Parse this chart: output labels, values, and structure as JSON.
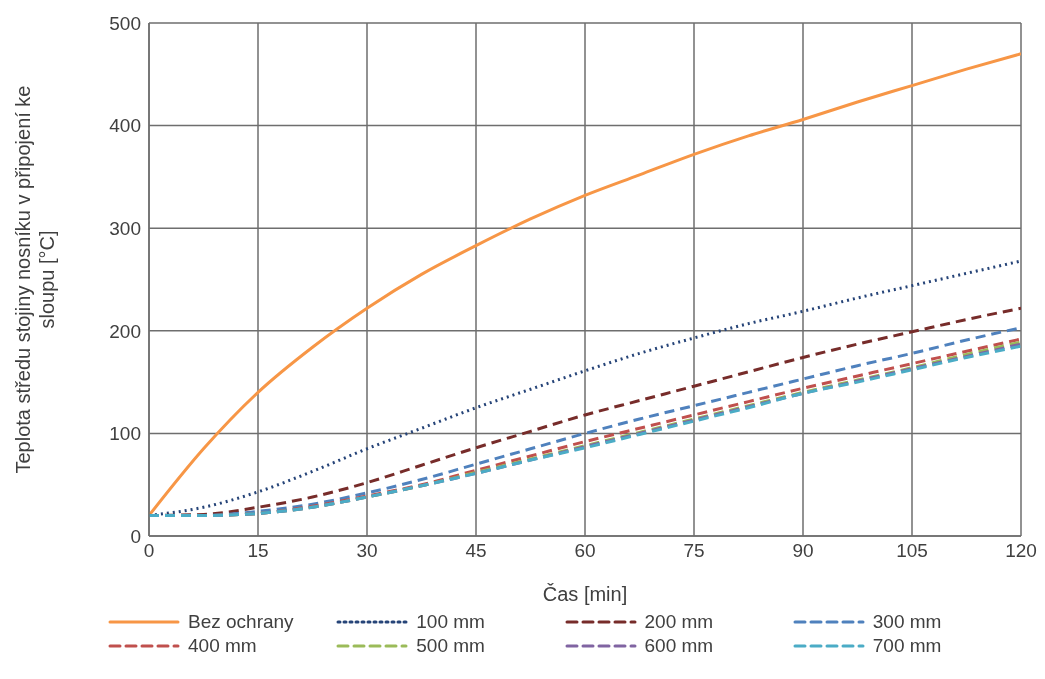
{
  "chart_data": {
    "type": "line",
    "xlabel": "Čas [min]",
    "ylabel": "Teplota středu stojiny nosníku v připojení ke sloupu [°C]",
    "x": [
      0,
      7.5,
      15,
      22.5,
      30,
      37.5,
      45,
      52.5,
      60,
      67.5,
      75,
      82.5,
      90,
      97.5,
      105,
      112.5,
      120
    ],
    "xlim": [
      0,
      120
    ],
    "xticks": [
      0,
      15,
      30,
      45,
      60,
      75,
      90,
      105,
      120
    ],
    "ylim": [
      0,
      500
    ],
    "yticks": [
      0,
      100,
      200,
      300,
      400,
      500
    ],
    "grid": true,
    "legend": "bottom",
    "marker": "none",
    "series": [
      {
        "name": "Bez ochrany",
        "color": "#f79646",
        "line_style": "solid",
        "values": [
          20,
          85,
          140,
          184,
          222,
          255,
          283,
          309,
          332,
          352,
          372,
          390,
          406,
          423,
          439,
          455,
          470
        ]
      },
      {
        "name": "100 mm",
        "color": "#264478",
        "line_style": "dotted",
        "values": [
          20,
          28,
          43,
          63,
          85,
          105,
          125,
          143,
          161,
          178,
          193,
          207,
          219,
          232,
          244,
          256,
          268
        ]
      },
      {
        "name": "200 mm",
        "color": "#772c2a",
        "line_style": "dashed",
        "values": [
          20,
          21,
          28,
          38,
          52,
          69,
          86,
          102,
          118,
          132,
          146,
          160,
          174,
          187,
          199,
          211,
          222
        ]
      },
      {
        "name": "300 mm",
        "color": "#4f81bd",
        "line_style": "dashed",
        "values": [
          20,
          20,
          24,
          31,
          42,
          55,
          70,
          85,
          100,
          114,
          127,
          140,
          153,
          166,
          178,
          191,
          203
        ]
      },
      {
        "name": "400 mm",
        "color": "#c0504d",
        "line_style": "dashed",
        "values": [
          20,
          20,
          22,
          29,
          39,
          50,
          64,
          78,
          92,
          105,
          118,
          131,
          144,
          156,
          168,
          180,
          192
        ]
      },
      {
        "name": "500 mm",
        "color": "#9bbb59",
        "line_style": "dashed",
        "values": [
          20,
          20,
          22,
          28,
          38,
          49,
          62,
          75,
          88,
          101,
          114,
          127,
          140,
          152,
          164,
          177,
          189
        ]
      },
      {
        "name": "600 mm",
        "color": "#8064a2",
        "line_style": "dashed",
        "values": [
          20,
          20,
          22,
          28,
          38,
          49,
          61,
          74,
          87,
          100,
          113,
          126,
          139,
          151,
          163,
          175,
          187
        ]
      },
      {
        "name": "700 mm",
        "color": "#4bacc6",
        "line_style": "dashed",
        "values": [
          20,
          20,
          22,
          28,
          38,
          49,
          61,
          74,
          86,
          99,
          112,
          125,
          139,
          150,
          162,
          174,
          185
        ]
      }
    ]
  }
}
